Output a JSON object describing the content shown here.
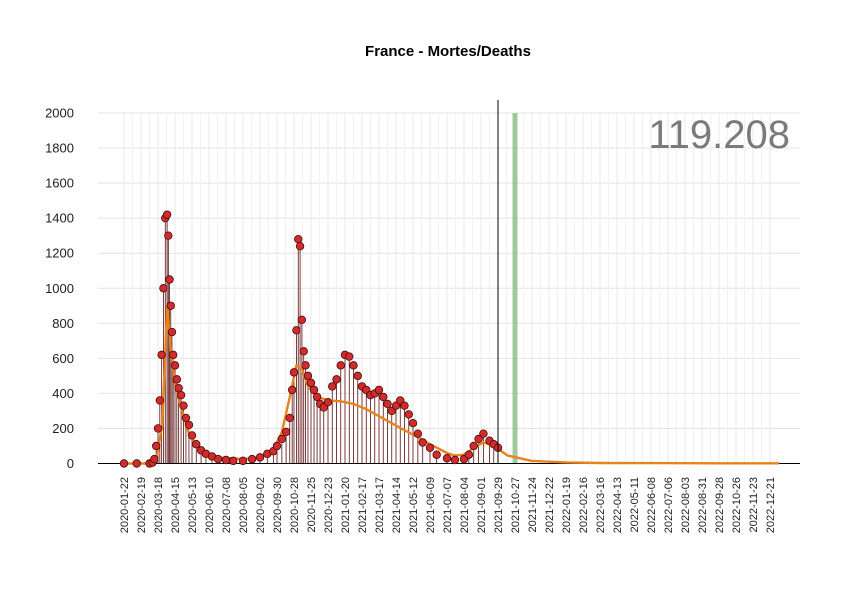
{
  "chart_data": {
    "type": "line",
    "title": "France - Mortes/Deaths",
    "total_label": "119.208",
    "xlabel": "",
    "ylabel": "",
    "ylim": [
      0,
      2000
    ],
    "yticks": [
      0,
      200,
      400,
      600,
      800,
      1000,
      1200,
      1400,
      1600,
      1800,
      2000
    ],
    "xticks": [
      "2020-01-22",
      "2020-02-19",
      "2020-03-18",
      "2020-04-15",
      "2020-05-13",
      "2020-06-10",
      "2020-07-08",
      "2020-08-05",
      "2020-09-02",
      "2020-09-30",
      "2020-10-28",
      "2020-11-25",
      "2020-12-23",
      "2021-01-20",
      "2021-02-17",
      "2021-03-17",
      "2021-04-14",
      "2021-05-12",
      "2021-06-09",
      "2021-07-07",
      "2021-08-04",
      "2021-09-01",
      "2021-09-29",
      "2021-10-27",
      "2021-11-24",
      "2021-12-22",
      "2022-01-19",
      "2022-02-16",
      "2022-03-16",
      "2022-04-13",
      "2022-05-11",
      "2022-06-08",
      "2022-07-06",
      "2022-08-03",
      "2022-08-31",
      "2022-09-28",
      "2022-10-26",
      "2022-11-23",
      "2022-12-21"
    ],
    "grid": true,
    "today_marker": "2021-09-29",
    "highlight_band": "2021-10-27",
    "colors": {
      "points": "#d12b2b",
      "point_stroke": "#4a0c0c",
      "stems": "#5a0f0f",
      "trend": "#e8821c",
      "today_line": "#000000",
      "band": "#7fb97f",
      "red_spike": "#e06060"
    },
    "series": [
      {
        "kind": "daily",
        "x": [
          "2020-01-22",
          "2020-02-12",
          "2020-03-04",
          "2020-03-09",
          "2020-03-12",
          "2020-03-15",
          "2020-03-18",
          "2020-03-21",
          "2020-03-24",
          "2020-03-27",
          "2020-03-30",
          "2020-04-02",
          "2020-04-04",
          "2020-04-06",
          "2020-04-08",
          "2020-04-10",
          "2020-04-12",
          "2020-04-15",
          "2020-04-18",
          "2020-04-21",
          "2020-04-25",
          "2020-04-29",
          "2020-05-03",
          "2020-05-08",
          "2020-05-13",
          "2020-05-20",
          "2020-05-28",
          "2020-06-05",
          "2020-06-15",
          "2020-06-25",
          "2020-07-08",
          "2020-07-20",
          "2020-08-05",
          "2020-08-20",
          "2020-09-02",
          "2020-09-14",
          "2020-09-24",
          "2020-09-30",
          "2020-10-08",
          "2020-10-15",
          "2020-10-21",
          "2020-10-25",
          "2020-10-28",
          "2020-11-01",
          "2020-11-04",
          "2020-11-07",
          "2020-11-10",
          "2020-11-13",
          "2020-11-16",
          "2020-11-20",
          "2020-11-25",
          "2020-11-30",
          "2020-12-05",
          "2020-12-10",
          "2020-12-16",
          "2020-12-23",
          "2020-12-30",
          "2021-01-06",
          "2021-01-13",
          "2021-01-20",
          "2021-01-27",
          "2021-02-03",
          "2021-02-10",
          "2021-02-17",
          "2021-02-24",
          "2021-03-03",
          "2021-03-10",
          "2021-03-17",
          "2021-03-24",
          "2021-03-31",
          "2021-04-07",
          "2021-04-14",
          "2021-04-21",
          "2021-04-28",
          "2021-05-05",
          "2021-05-12",
          "2021-05-20",
          "2021-05-28",
          "2021-06-09",
          "2021-06-20",
          "2021-07-07",
          "2021-07-20",
          "2021-08-04",
          "2021-08-12",
          "2021-08-20",
          "2021-08-28",
          "2021-09-05",
          "2021-09-15",
          "2021-09-22",
          "2021-09-29"
        ],
        "values": [
          0,
          0,
          0,
          5,
          25,
          100,
          200,
          360,
          620,
          1000,
          1400,
          1420,
          1300,
          1050,
          900,
          750,
          620,
          560,
          480,
          430,
          390,
          330,
          260,
          220,
          160,
          110,
          75,
          55,
          40,
          25,
          20,
          15,
          15,
          25,
          35,
          55,
          70,
          100,
          140,
          180,
          260,
          420,
          520,
          760,
          1280,
          1240,
          820,
          640,
          560,
          500,
          460,
          420,
          380,
          340,
          320,
          350,
          440,
          480,
          560,
          620,
          610,
          560,
          500,
          440,
          420,
          390,
          400,
          420,
          380,
          340,
          300,
          330,
          360,
          330,
          280,
          230,
          170,
          120,
          90,
          50,
          30,
          20,
          25,
          50,
          100,
          140,
          170,
          130,
          110,
          90
        ]
      },
      {
        "kind": "trend",
        "x": [
          "2020-01-22",
          "2020-03-04",
          "2020-03-16",
          "2020-03-25",
          "2020-04-02",
          "2020-04-08",
          "2020-04-15",
          "2020-04-25",
          "2020-05-08",
          "2020-05-28",
          "2020-06-25",
          "2020-08-05",
          "2020-09-02",
          "2020-09-24",
          "2020-10-08",
          "2020-10-21",
          "2020-11-01",
          "2020-11-10",
          "2020-11-20",
          "2020-12-05",
          "2020-12-23",
          "2021-01-13",
          "2021-02-03",
          "2021-02-24",
          "2021-03-17",
          "2021-04-07",
          "2021-04-28",
          "2021-05-20",
          "2021-06-09",
          "2021-07-07",
          "2021-07-20",
          "2021-08-04",
          "2021-08-20",
          "2021-09-05",
          "2021-09-22",
          "2021-10-15",
          "2021-11-24",
          "2022-01-19",
          "2022-03-16",
          "2022-06-08",
          "2022-09-28",
          "2022-12-21",
          "2023-01-05"
        ],
        "values": [
          0,
          0,
          40,
          220,
          900,
          650,
          450,
          320,
          170,
          70,
          35,
          25,
          35,
          80,
          180,
          380,
          560,
          540,
          440,
          380,
          360,
          355,
          340,
          310,
          270,
          230,
          190,
          150,
          110,
          60,
          45,
          50,
          90,
          120,
          100,
          45,
          15,
          6,
          3,
          2,
          1,
          1,
          1
        ]
      }
    ]
  }
}
